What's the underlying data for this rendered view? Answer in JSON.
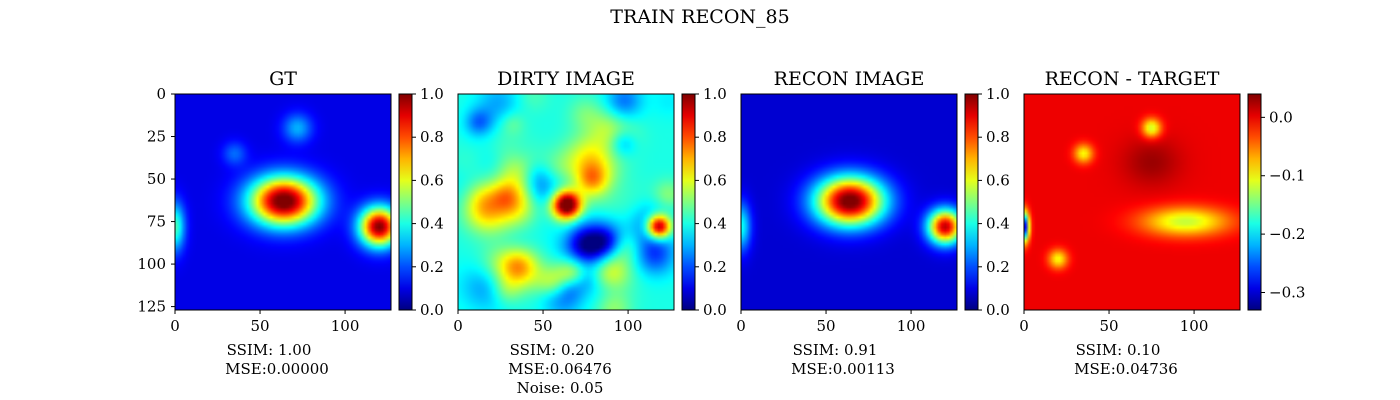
{
  "figure": {
    "suptitle": "TRAIN RECON_85"
  },
  "colors": {
    "colormap": "jet",
    "axis": "#000000",
    "background": "#ffffff"
  },
  "chart_data": [
    {
      "type": "heatmap",
      "title": "GT",
      "caption": [
        "SSIM: 1.00",
        "MSE:0.00000"
      ],
      "xticks": [
        "0",
        "50",
        "100"
      ],
      "yticks": [
        "0",
        "25",
        "50",
        "75",
        "100",
        "125"
      ],
      "extent": [
        0,
        127
      ],
      "colorbar": {
        "min": 0.0,
        "max": 1.0,
        "ticks": [
          "0.0",
          "0.2",
          "0.4",
          "0.6",
          "0.8",
          "1.0"
        ]
      },
      "background_level": 0.1,
      "features": [
        {
          "x": 64,
          "y": 63,
          "peak": 1.0,
          "sigma_x": 14,
          "sigma_y": 10,
          "note": "bright central source"
        },
        {
          "x": 120,
          "y": 78,
          "peak": 0.95,
          "sigma_x": 8,
          "sigma_y": 8,
          "note": "right edge source"
        },
        {
          "x": 0,
          "y": 78,
          "peak": 0.4,
          "sigma_x": 4,
          "sigma_y": 10,
          "note": "left edge source"
        },
        {
          "x": 72,
          "y": 20,
          "peak": 0.25,
          "sigma_x": 6,
          "sigma_y": 6
        },
        {
          "x": 35,
          "y": 35,
          "peak": 0.18,
          "sigma_x": 5,
          "sigma_y": 5
        }
      ]
    },
    {
      "type": "heatmap",
      "title": "DIRTY IMAGE",
      "caption": [
        "SSIM: 0.20",
        "MSE:0.06476",
        "Noise: 0.05"
      ],
      "xticks": [
        "0",
        "50",
        "100"
      ],
      "yticks": [],
      "extent": [
        0,
        127
      ],
      "colorbar": {
        "min": 0.0,
        "max": 1.0,
        "ticks": [
          "0.0",
          "0.2",
          "0.4",
          "0.6",
          "0.8",
          "1.0"
        ]
      },
      "background_level": 0.4,
      "noise_amplitude": 0.22,
      "features": [
        {
          "x": 64,
          "y": 65,
          "peak": 1.0,
          "sigma_x": 6,
          "sigma_y": 6
        },
        {
          "x": 118,
          "y": 78,
          "peak": 0.95,
          "sigma_x": 5,
          "sigma_y": 5
        }
      ]
    },
    {
      "type": "heatmap",
      "title": "RECON IMAGE",
      "caption": [
        "SSIM: 0.91",
        "MSE:0.00113"
      ],
      "xticks": [
        "0",
        "50",
        "100"
      ],
      "yticks": [],
      "extent": [
        0,
        127
      ],
      "colorbar": {
        "min": 0.0,
        "max": 1.0,
        "ticks": [
          "0.0",
          "0.2",
          "0.4",
          "0.6",
          "0.8",
          "1.0"
        ]
      },
      "background_level": 0.08,
      "features": [
        {
          "x": 64,
          "y": 63,
          "peak": 1.0,
          "sigma_x": 14,
          "sigma_y": 10
        },
        {
          "x": 120,
          "y": 78,
          "peak": 0.9,
          "sigma_x": 7,
          "sigma_y": 7
        },
        {
          "x": 0,
          "y": 78,
          "peak": 0.35,
          "sigma_x": 4,
          "sigma_y": 10
        }
      ]
    },
    {
      "type": "heatmap",
      "title": "RECON - TARGET",
      "caption": [
        "SSIM: 0.10",
        "MSE:0.04736"
      ],
      "xticks": [
        "0",
        "50",
        "100"
      ],
      "yticks": [],
      "extent": [
        0,
        127
      ],
      "colorbar": {
        "min": -0.33,
        "max": 0.04,
        "ticks": [
          "0.0",
          "−0.1",
          "−0.2",
          "−0.3"
        ],
        "tick_values": [
          0.0,
          -0.1,
          -0.2,
          -0.3
        ]
      },
      "background_level": 0.0,
      "features": [
        {
          "x": 0,
          "y": 78,
          "peak": -0.32,
          "sigma_x": 2,
          "sigma_y": 6,
          "note": "left edge minimum"
        },
        {
          "x": 95,
          "y": 75,
          "peak": -0.12,
          "sigma_x": 18,
          "sigma_y": 6
        },
        {
          "x": 75,
          "y": 20,
          "peak": -0.12,
          "sigma_x": 4,
          "sigma_y": 4
        },
        {
          "x": 35,
          "y": 35,
          "peak": -0.1,
          "sigma_x": 4,
          "sigma_y": 4
        },
        {
          "x": 20,
          "y": 97,
          "peak": -0.1,
          "sigma_x": 4,
          "sigma_y": 4
        },
        {
          "x": 75,
          "y": 40,
          "peak": 0.03,
          "sigma_x": 12,
          "sigma_y": 10
        }
      ]
    }
  ]
}
